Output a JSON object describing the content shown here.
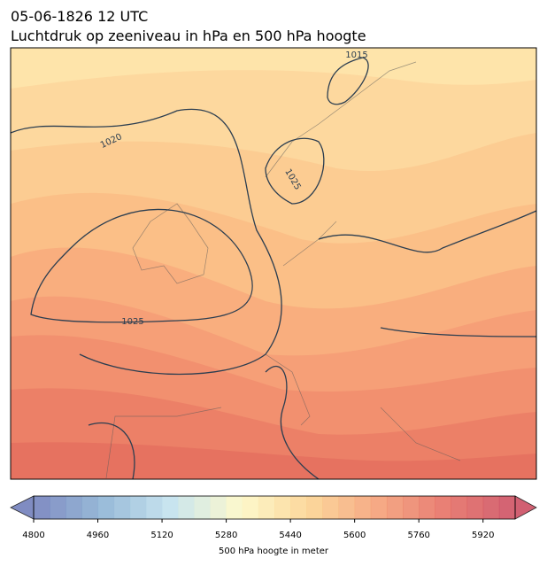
{
  "header": {
    "title_line1": "05-06-1826 12 UTC",
    "title_line2": "Luchtdruk op zeeniveau in hPa en 500 hPa hoogte"
  },
  "map": {
    "contour_labels": [
      1015,
      1020,
      1025,
      1025
    ]
  },
  "colorbar": {
    "lim": [
      4800,
      6000
    ],
    "ticks": [
      4800,
      4960,
      5120,
      5280,
      5440,
      5600,
      5760,
      5920
    ],
    "step": 40,
    "label": "500 hPa hoogte in meter",
    "colors": [
      "#6a78b8",
      "#86aed2",
      "#bfe0ec",
      "#fdf8c4",
      "#fbd08a",
      "#f49b70",
      "#e4675c",
      "#c9455a"
    ]
  }
}
